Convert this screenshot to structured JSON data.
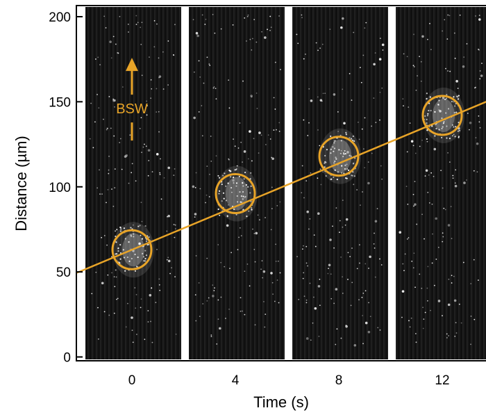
{
  "chart_data": {
    "type": "scatter",
    "title": "",
    "xlabel": "Time (s)",
    "ylabel": "Distance (µm)",
    "xlim": [
      -2.2,
      14.5
    ],
    "ylim": [
      -3,
      203
    ],
    "x_ticks": [
      {
        "value": 0,
        "label": "0"
      },
      {
        "value": 4,
        "label": "4"
      },
      {
        "value": 8,
        "label": "8"
      },
      {
        "value": 12,
        "label": "12"
      }
    ],
    "y_ticks": [
      {
        "value": 0,
        "label": "0"
      },
      {
        "value": 50,
        "label": "50"
      },
      {
        "value": 100,
        "label": "100"
      },
      {
        "value": 150,
        "label": "150"
      },
      {
        "value": 200,
        "label": "200"
      }
    ],
    "image_panels": [
      {
        "time": 0
      },
      {
        "time": 4
      },
      {
        "time": 8
      },
      {
        "time": 12
      }
    ],
    "series": [
      {
        "points": [
          {
            "x": 0,
            "y": 63
          },
          {
            "x": 4,
            "y": 96
          },
          {
            "x": 8,
            "y": 118
          },
          {
            "x": 12,
            "y": 142
          }
        ]
      }
    ],
    "fit_line": {
      "slope": 6.35,
      "intercept": 63
    },
    "annotations": [
      {
        "text": "BSW",
        "x": 0,
        "y": 146,
        "arrow": "up"
      }
    ],
    "colors": {
      "marker": "#e8a428",
      "panel": "#141414",
      "axis": "#000000"
    },
    "grid": false,
    "legend": "none"
  }
}
